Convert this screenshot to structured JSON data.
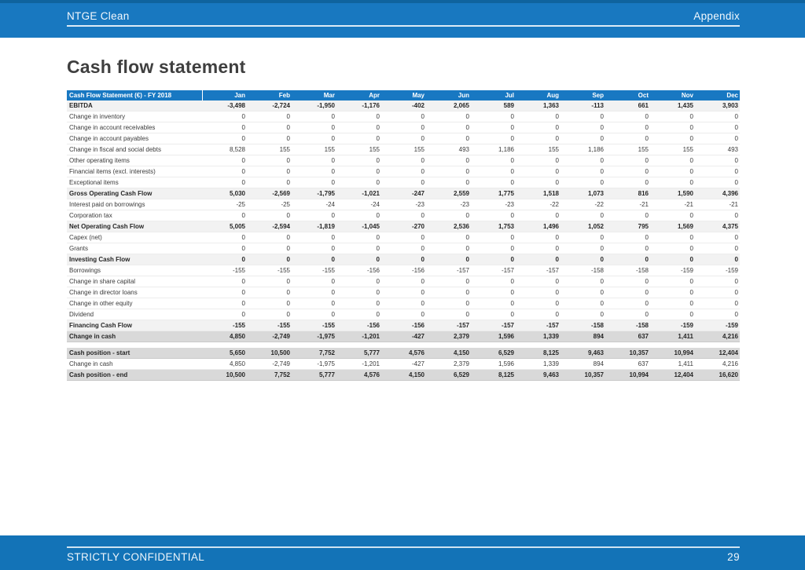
{
  "slide": {
    "header": {
      "left": "NTGE Clean",
      "right": "Appendix"
    },
    "title": "Cash flow statement",
    "footer": {
      "left": "STRICTLY CONFIDENTIAL",
      "page_number": "29"
    }
  },
  "colors": {
    "header_blue": "#1878c0",
    "top_stripe": "#0f639e",
    "footer_blue": "#1373b7",
    "table_header_blue": "#1878c2",
    "subtotal_bg": "#f2f2f2",
    "summary_bg": "#d9d9d9"
  },
  "table": {
    "header_label": "Cash Flow Statement (€) - FY 2018",
    "columns": [
      "Jan",
      "Feb",
      "Mar",
      "Apr",
      "May",
      "Jun",
      "Jul",
      "Aug",
      "Sep",
      "Oct",
      "Nov",
      "Dec"
    ],
    "rows": [
      {
        "label": "EBITDA",
        "type": "subtotal",
        "values": [
          "-3,498",
          "-2,724",
          "-1,950",
          "-1,176",
          "-402",
          "2,065",
          "589",
          "1,363",
          "-113",
          "661",
          "1,435",
          "3,903"
        ]
      },
      {
        "label": "Change in inventory",
        "type": "normal",
        "values": [
          "0",
          "0",
          "0",
          "0",
          "0",
          "0",
          "0",
          "0",
          "0",
          "0",
          "0",
          "0"
        ]
      },
      {
        "label": "Change in account receivables",
        "type": "normal",
        "values": [
          "0",
          "0",
          "0",
          "0",
          "0",
          "0",
          "0",
          "0",
          "0",
          "0",
          "0",
          "0"
        ]
      },
      {
        "label": "Change in account payables",
        "type": "normal",
        "values": [
          "0",
          "0",
          "0",
          "0",
          "0",
          "0",
          "0",
          "0",
          "0",
          "0",
          "0",
          "0"
        ]
      },
      {
        "label": "Change in fiscal and social debts",
        "type": "normal",
        "values": [
          "8,528",
          "155",
          "155",
          "155",
          "155",
          "493",
          "1,186",
          "155",
          "1,186",
          "155",
          "155",
          "493"
        ]
      },
      {
        "label": "Other operating items",
        "type": "normal",
        "values": [
          "0",
          "0",
          "0",
          "0",
          "0",
          "0",
          "0",
          "0",
          "0",
          "0",
          "0",
          "0"
        ]
      },
      {
        "label": "Financial items (excl. interests)",
        "type": "normal",
        "values": [
          "0",
          "0",
          "0",
          "0",
          "0",
          "0",
          "0",
          "0",
          "0",
          "0",
          "0",
          "0"
        ]
      },
      {
        "label": "Exceptional items",
        "type": "normal",
        "values": [
          "0",
          "0",
          "0",
          "0",
          "0",
          "0",
          "0",
          "0",
          "0",
          "0",
          "0",
          "0"
        ]
      },
      {
        "label": "Gross Operating Cash Flow",
        "type": "subtotal",
        "values": [
          "5,030",
          "-2,569",
          "-1,795",
          "-1,021",
          "-247",
          "2,559",
          "1,775",
          "1,518",
          "1,073",
          "816",
          "1,590",
          "4,396"
        ]
      },
      {
        "label": "Interest paid on borrowings",
        "type": "normal",
        "values": [
          "-25",
          "-25",
          "-24",
          "-24",
          "-23",
          "-23",
          "-23",
          "-22",
          "-22",
          "-21",
          "-21",
          "-21"
        ]
      },
      {
        "label": "Corporation tax",
        "type": "normal",
        "values": [
          "0",
          "0",
          "0",
          "0",
          "0",
          "0",
          "0",
          "0",
          "0",
          "0",
          "0",
          "0"
        ]
      },
      {
        "label": "Net Operating Cash Flow",
        "type": "subtotal",
        "values": [
          "5,005",
          "-2,594",
          "-1,819",
          "-1,045",
          "-270",
          "2,536",
          "1,753",
          "1,496",
          "1,052",
          "795",
          "1,569",
          "4,375"
        ]
      },
      {
        "label": "Capex (net)",
        "type": "normal",
        "values": [
          "0",
          "0",
          "0",
          "0",
          "0",
          "0",
          "0",
          "0",
          "0",
          "0",
          "0",
          "0"
        ]
      },
      {
        "label": "Grants",
        "type": "normal",
        "values": [
          "0",
          "0",
          "0",
          "0",
          "0",
          "0",
          "0",
          "0",
          "0",
          "0",
          "0",
          "0"
        ]
      },
      {
        "label": "Investing Cash Flow",
        "type": "subtotal",
        "values": [
          "0",
          "0",
          "0",
          "0",
          "0",
          "0",
          "0",
          "0",
          "0",
          "0",
          "0",
          "0"
        ]
      },
      {
        "label": "Borrowings",
        "type": "normal",
        "values": [
          "-155",
          "-155",
          "-155",
          "-156",
          "-156",
          "-157",
          "-157",
          "-157",
          "-158",
          "-158",
          "-159",
          "-159"
        ]
      },
      {
        "label": "Change in share capital",
        "type": "normal",
        "values": [
          "0",
          "0",
          "0",
          "0",
          "0",
          "0",
          "0",
          "0",
          "0",
          "0",
          "0",
          "0"
        ]
      },
      {
        "label": "Change in director loans",
        "type": "normal",
        "values": [
          "0",
          "0",
          "0",
          "0",
          "0",
          "0",
          "0",
          "0",
          "0",
          "0",
          "0",
          "0"
        ]
      },
      {
        "label": "Change in other equity",
        "type": "normal",
        "values": [
          "0",
          "0",
          "0",
          "0",
          "0",
          "0",
          "0",
          "0",
          "0",
          "0",
          "0",
          "0"
        ]
      },
      {
        "label": "Dividend",
        "type": "normal",
        "values": [
          "0",
          "0",
          "0",
          "0",
          "0",
          "0",
          "0",
          "0",
          "0",
          "0",
          "0",
          "0"
        ]
      },
      {
        "label": "Financing Cash Flow",
        "type": "subtotal",
        "values": [
          "-155",
          "-155",
          "-155",
          "-156",
          "-156",
          "-157",
          "-157",
          "-157",
          "-158",
          "-158",
          "-159",
          "-159"
        ]
      },
      {
        "label": "Change in cash",
        "type": "summary",
        "values": [
          "4,850",
          "-2,749",
          "-1,975",
          "-1,201",
          "-427",
          "2,379",
          "1,596",
          "1,339",
          "894",
          "637",
          "1,411",
          "4,216"
        ]
      },
      {
        "label": "",
        "type": "spacer",
        "values": []
      },
      {
        "label": "Cash position - start",
        "type": "summary",
        "values": [
          "5,650",
          "10,500",
          "7,752",
          "5,777",
          "4,576",
          "4,150",
          "6,529",
          "8,125",
          "9,463",
          "10,357",
          "10,994",
          "12,404"
        ]
      },
      {
        "label": "Change in cash",
        "type": "normal",
        "values": [
          "4,850",
          "-2,749",
          "-1,975",
          "-1,201",
          "-427",
          "2,379",
          "1,596",
          "1,339",
          "894",
          "637",
          "1,411",
          "4,216"
        ]
      },
      {
        "label": "Cash position - end",
        "type": "summary",
        "values": [
          "10,500",
          "7,752",
          "5,777",
          "4,576",
          "4,150",
          "6,529",
          "8,125",
          "9,463",
          "10,357",
          "10,994",
          "12,404",
          "16,620"
        ]
      }
    ]
  }
}
